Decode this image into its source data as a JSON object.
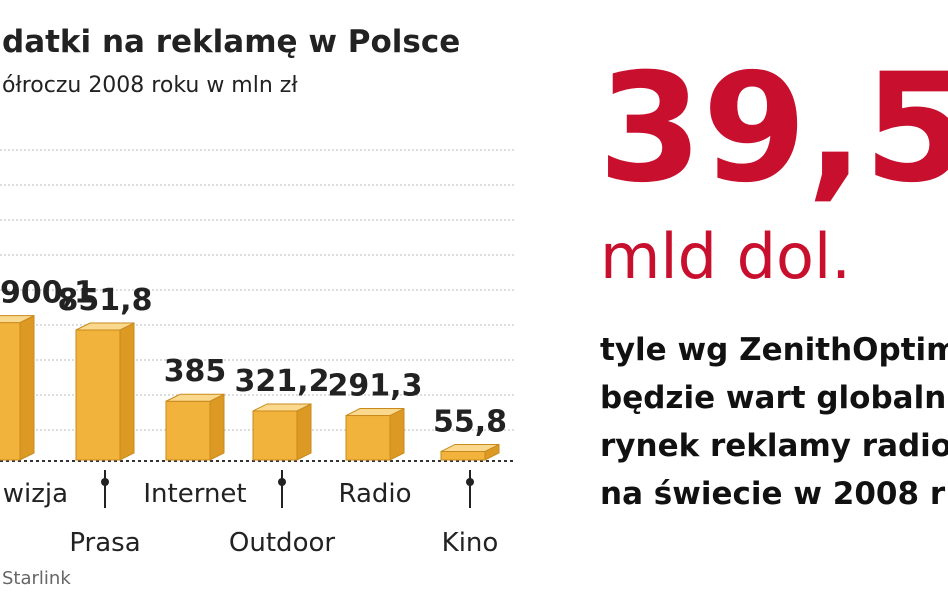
{
  "chart_data": {
    "type": "bar3d",
    "title": "datki na reklamę w Polsce",
    "subtitle": "ółroczu 2008 roku w mln zł",
    "categories": [
      "wizja",
      "Prasa",
      "Internet",
      "Outdoor",
      "Radio",
      "Kino"
    ],
    "values": [
      900.1,
      851.8,
      385,
      321.2,
      291.3,
      55.8
    ],
    "value_labels": [
      "900,1",
      "851,8",
      "385",
      "321,2",
      "291,3",
      "55,8"
    ],
    "color": "#f2b33d",
    "source": "Starlink"
  },
  "highlight": {
    "value": "39,5",
    "unit": "mld dol.",
    "text": [
      "tyle wg ZenithOptim",
      "będzie wart globaln",
      "rynek reklamy radio",
      "na świecie w 2008 r"
    ]
  }
}
